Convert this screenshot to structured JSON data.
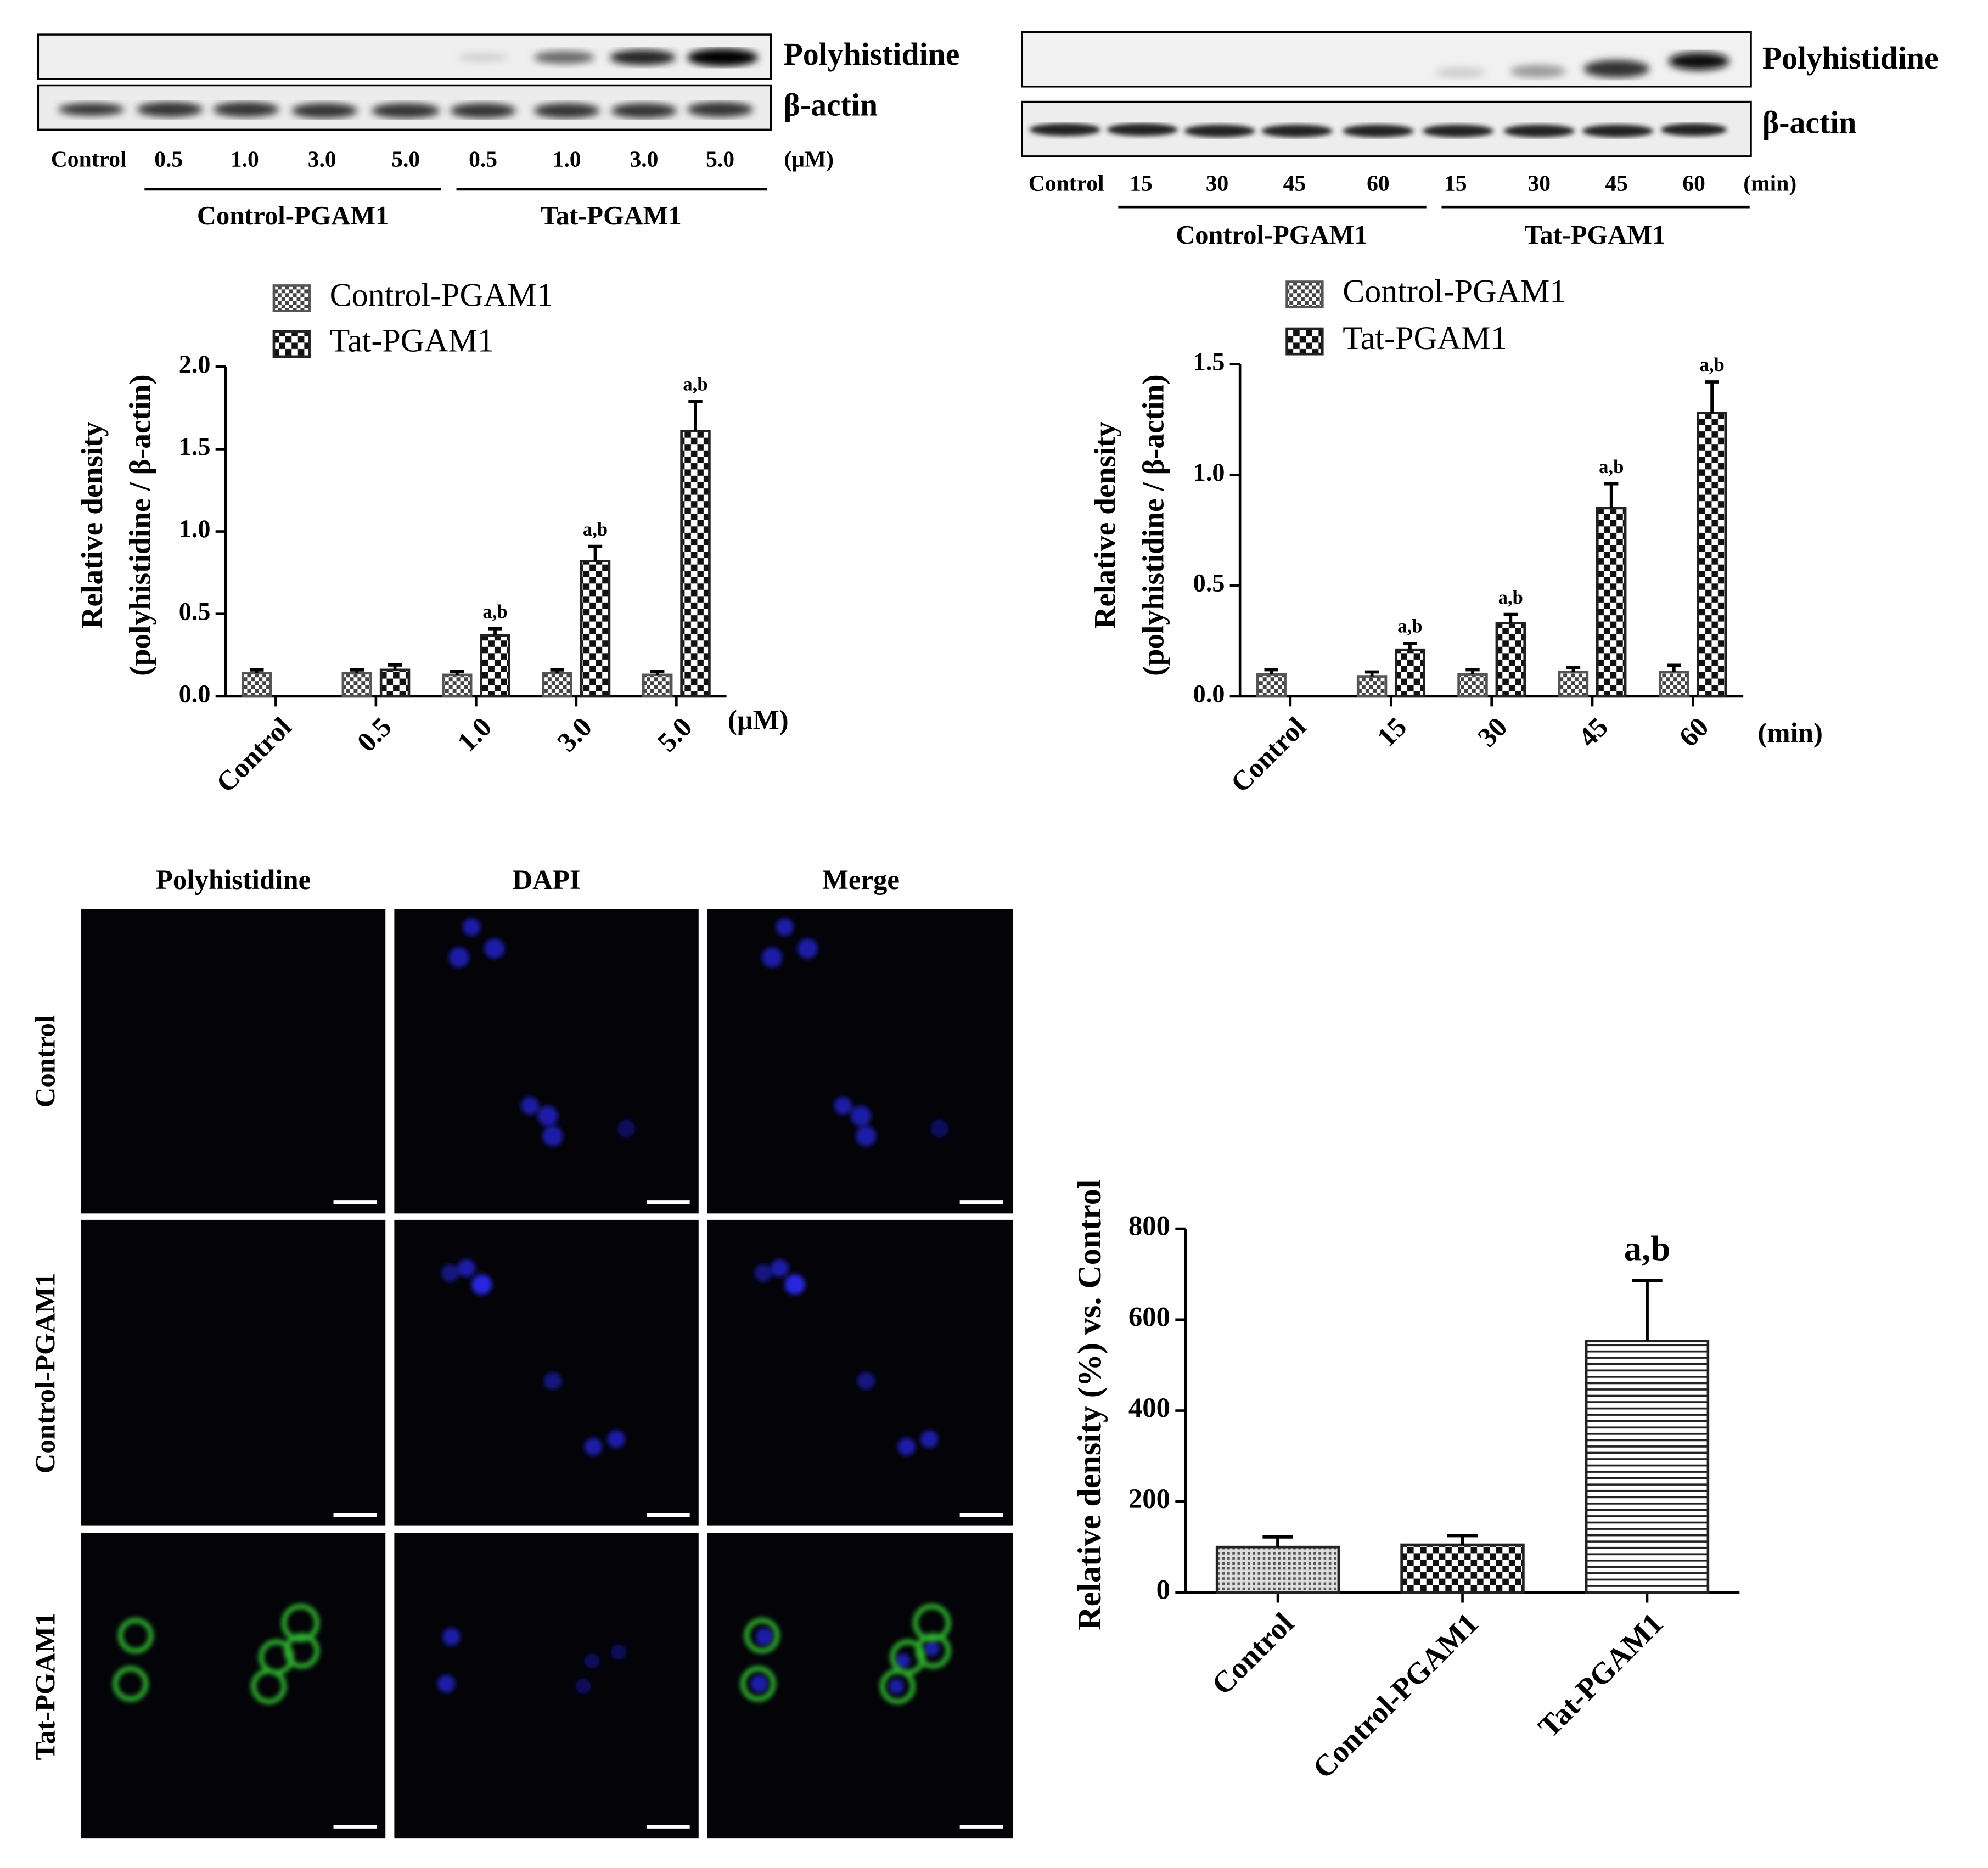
{
  "chart_data": [
    {
      "type": "bar",
      "y_label": [
        "Relative density",
        "(polyhistidine / β-actin)"
      ],
      "x_unit": "(μM)",
      "categories": [
        "Control",
        "0.5",
        "1.0",
        "3.0",
        "5.0"
      ],
      "series": [
        {
          "name": "Control-PGAM1",
          "color": "#555555",
          "pattern": "fine-check",
          "values": [
            0.14,
            0.14,
            0.13,
            0.14,
            0.13
          ],
          "errors": [
            0.02,
            0.02,
            0.02,
            0.02,
            0.02
          ]
        },
        {
          "name": "Tat-PGAM1",
          "color": "#222222",
          "pattern": "coarse-check",
          "values": [
            null,
            0.16,
            0.37,
            0.82,
            1.61
          ],
          "errors": [
            null,
            0.03,
            0.04,
            0.09,
            0.18
          ],
          "annotations": [
            null,
            null,
            "a,b",
            "a,b",
            "a,b"
          ]
        }
      ],
      "ylim": [
        0,
        2.0
      ],
      "yticks": [
        {
          "value": 0,
          "label": "0.0"
        },
        0.5,
        {
          "value": 1,
          "label": "1.0"
        },
        1.5,
        {
          "value": 2,
          "label": "2.0"
        }
      ]
    },
    {
      "type": "bar",
      "y_label": [
        "Relative density",
        "(polyhistidine / β-actin)"
      ],
      "x_unit": "(min)",
      "categories": [
        "Control",
        "15",
        "30",
        "45",
        "60"
      ],
      "series": [
        {
          "name": "Control-PGAM1",
          "color": "#555555",
          "pattern": "fine-check",
          "values": [
            0.1,
            0.09,
            0.1,
            0.11,
            0.11
          ],
          "errors": [
            0.02,
            0.02,
            0.02,
            0.02,
            0.03
          ]
        },
        {
          "name": "Tat-PGAM1",
          "color": "#222222",
          "pattern": "coarse-check",
          "values": [
            null,
            0.21,
            0.33,
            0.85,
            1.28
          ],
          "errors": [
            null,
            0.03,
            0.04,
            0.11,
            0.14
          ],
          "annotations": [
            null,
            "a,b",
            "a,b",
            "a,b",
            "a,b"
          ]
        }
      ],
      "ylim": [
        0,
        1.5
      ],
      "yticks": [
        {
          "value": 0,
          "label": "0.0"
        },
        0.5,
        {
          "value": 1,
          "label": "1.0"
        },
        1.5
      ]
    },
    {
      "type": "bar",
      "y_label": [
        "Relative density (%) vs. Control"
      ],
      "categories": [
        "Control",
        "Control-PGAM1",
        "Tat-PGAM1"
      ],
      "values": [
        100,
        105,
        553
      ],
      "errors": [
        22,
        20,
        133
      ],
      "annotations": [
        null,
        null,
        "a,b"
      ],
      "color": "#222222",
      "patterns": [
        "dots",
        "coarse-check",
        "hlines"
      ],
      "ylim": [
        0,
        800
      ],
      "yticks": [
        0,
        200,
        400,
        600,
        800
      ]
    }
  ],
  "blot_panels": [
    {
      "rows": [
        "Polyhistidine",
        "β-actin"
      ],
      "lanes": [
        "Control",
        "0.5",
        "1.0",
        "3.0",
        "5.0",
        "0.5",
        "1.0",
        "3.0",
        "5.0"
      ],
      "unit": "(μM)",
      "groups": [
        "Control-PGAM1",
        "Tat-PGAM1"
      ]
    },
    {
      "rows": [
        "Polyhistidine",
        "β-actin"
      ],
      "lanes": [
        "Control",
        "15",
        "30",
        "45",
        "60",
        "15",
        "30",
        "45",
        "60"
      ],
      "unit": "(min)",
      "groups": [
        "Control-PGAM1",
        "Tat-PGAM1"
      ]
    }
  ],
  "micrograph_panel": {
    "columns": [
      "Polyhistidine",
      "DAPI",
      "Merge"
    ],
    "rows": [
      "Control",
      "Control-PGAM1",
      "Tat-PGAM1"
    ]
  }
}
